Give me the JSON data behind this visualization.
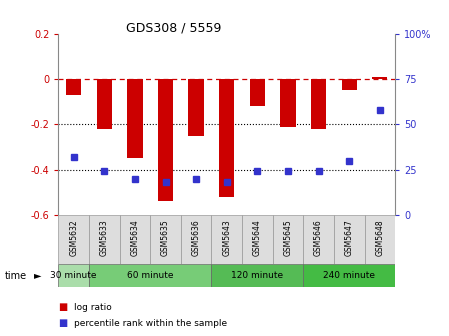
{
  "title": "GDS308 / 5559",
  "samples": [
    "GSM5632",
    "GSM5633",
    "GSM5634",
    "GSM5635",
    "GSM5636",
    "GSM5643",
    "GSM5644",
    "GSM5645",
    "GSM5646",
    "GSM5647",
    "GSM5648"
  ],
  "log_ratios": [
    -0.07,
    -0.22,
    -0.35,
    -0.54,
    -0.25,
    -0.52,
    -0.12,
    -0.21,
    -0.22,
    -0.05,
    0.01
  ],
  "percentile_ranks": [
    32,
    24,
    20,
    18,
    20,
    18,
    24,
    24,
    24,
    30,
    58
  ],
  "bar_color": "#CC0000",
  "dot_color": "#3333CC",
  "ylim_left": [
    -0.6,
    0.2
  ],
  "ylim_right": [
    0,
    100
  ],
  "right_yticks": [
    0,
    25,
    50,
    75,
    100
  ],
  "right_yticklabels": [
    "0",
    "25",
    "50",
    "75",
    "100%"
  ],
  "left_yticks": [
    -0.6,
    -0.4,
    -0.2,
    0.0,
    0.2
  ],
  "left_yticklabels": [
    "-0.6",
    "-0.4",
    "-0.2",
    "0",
    "0.2"
  ],
  "dotted_lines": [
    -0.2,
    -0.4
  ],
  "dashed_line": 0.0,
  "group_spans": [
    {
      "label": "30 minute",
      "indices": [
        0
      ],
      "color": "#AADDAA"
    },
    {
      "label": "60 minute",
      "indices": [
        1,
        2,
        3,
        4
      ],
      "color": "#77CC77"
    },
    {
      "label": "120 minute",
      "indices": [
        5,
        6,
        7
      ],
      "color": "#55BB55"
    },
    {
      "label": "240 minute",
      "indices": [
        8,
        9,
        10
      ],
      "color": "#44BB44"
    }
  ],
  "bar_width": 0.5,
  "legend_log": "log ratio",
  "legend_pct": "percentile rank within the sample"
}
